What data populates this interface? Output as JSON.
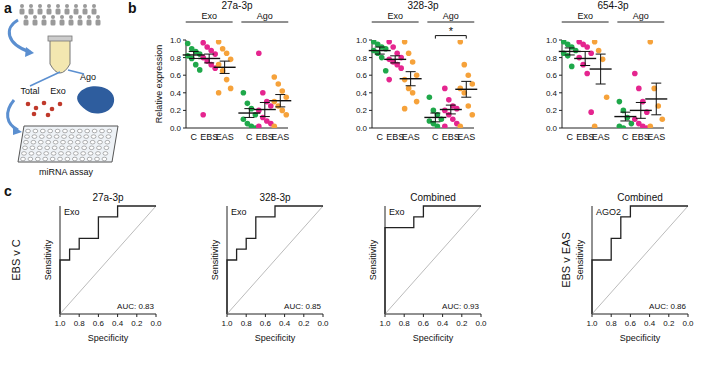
{
  "figure": {
    "panel_labels": [
      "a",
      "b",
      "c"
    ],
    "schematic_labels": [
      "Total",
      "Exo",
      "Ago",
      "miRNA assay"
    ],
    "row_labels": [
      "EBS v C",
      "EBS v EAS"
    ]
  },
  "chart_data": [
    {
      "type": "dot_plot",
      "title": "27a-3p",
      "y_label": "Relative expression",
      "categories": [
        "C",
        "EBS",
        "EAS",
        "C",
        "EBS",
        "EAS"
      ],
      "groups": [
        "Exo",
        "Ago"
      ],
      "colors": [
        "#1fa84a",
        "#e5258f",
        "#f6a23a",
        "#1fa84a",
        "#e5258f",
        "#f6a23a"
      ],
      "points": [
        [
          0.96,
          0.9,
          0.87,
          0.84,
          0.82,
          0.79,
          0.72,
          0.66
        ],
        [
          0.97,
          0.92,
          0.88,
          0.84,
          0.8,
          0.76,
          0.72,
          0.68,
          0.15
        ],
        [
          0.98,
          0.9,
          0.85,
          0.78,
          0.72,
          0.65,
          0.55,
          0.45,
          0.4
        ],
        [
          0.4,
          0.28,
          0.22,
          0.15,
          0.1,
          0.05,
          0.02,
          0.0
        ],
        [
          0.85,
          0.4,
          0.3,
          0.25,
          0.2,
          0.12,
          0.08,
          0.05,
          0.02
        ],
        [
          0.58,
          0.5,
          0.42,
          0.35,
          0.3,
          0.25,
          0.2,
          0.15,
          0.02
        ]
      ],
      "means": [
        0.83,
        0.79,
        0.69,
        0.17,
        0.21,
        0.31
      ],
      "errors": [
        0.04,
        0.05,
        0.07,
        0.05,
        0.08,
        0.07
      ],
      "ylim": [
        0,
        1
      ],
      "yticks": [
        {
          "value": 0,
          "label": "0.0"
        },
        0.2,
        0.4,
        0.6,
        0.8,
        {
          "value": 1,
          "label": "1.0"
        }
      ]
    },
    {
      "type": "dot_plot",
      "title": "328-3p",
      "categories": [
        "C",
        "EBS",
        "EAS",
        "C",
        "EBS",
        "EAS"
      ],
      "groups": [
        "Exo",
        "Ago"
      ],
      "colors": [
        "#1fa84a",
        "#e5258f",
        "#f6a23a",
        "#1fa84a",
        "#e5258f",
        "#f6a23a"
      ],
      "points": [
        [
          0.98,
          0.95,
          0.92,
          0.9,
          0.88,
          0.85,
          0.8,
          0.65
        ],
        [
          0.98,
          0.92,
          0.85,
          0.8,
          0.78,
          0.75,
          0.72,
          0.68,
          0.55
        ],
        [
          0.98,
          0.85,
          0.75,
          0.6,
          0.55,
          0.45,
          0.4,
          0.3,
          0.22
        ],
        [
          0.35,
          0.2,
          0.15,
          0.1,
          0.08,
          0.05,
          0.02
        ],
        [
          0.45,
          0.32,
          0.25,
          0.22,
          0.2,
          0.15,
          0.1,
          0.05,
          0.02
        ],
        [
          0.98,
          0.72,
          0.6,
          0.5,
          0.45,
          0.4,
          0.25,
          0.15,
          0.02
        ]
      ],
      "means": [
        0.88,
        0.78,
        0.56,
        0.12,
        0.21,
        0.44
      ],
      "errors": [
        0.04,
        0.04,
        0.08,
        0.05,
        0.05,
        0.09
      ],
      "ylim": [
        0,
        1
      ],
      "yticks": [
        {
          "value": 0,
          "label": "0.0"
        },
        0.2,
        0.4,
        0.6,
        0.8,
        {
          "value": 1,
          "label": "1.0"
        }
      ],
      "annotations": [
        {
          "text": "*",
          "from": 3,
          "to": 5,
          "y": 1.05
        }
      ]
    },
    {
      "type": "dot_plot",
      "title": "654-3p",
      "categories": [
        "C",
        "EBS",
        "EAS",
        "C",
        "EBS",
        "EAS"
      ],
      "groups": [
        "Exo",
        "Ago"
      ],
      "colors": [
        "#1fa84a",
        "#e5258f",
        "#f6a23a",
        "#1fa84a",
        "#e5258f",
        "#f6a23a"
      ],
      "points": [
        [
          0.98,
          0.95,
          0.92,
          0.88,
          0.85,
          0.82,
          0.7
        ],
        [
          0.98,
          0.95,
          0.92,
          0.85,
          0.8,
          0.72,
          0.62,
          0.18
        ],
        [
          0.98,
          0.88,
          0.78,
          0.35,
          0.02
        ],
        [
          0.3,
          0.2,
          0.12,
          0.05,
          0.02,
          0.0
        ],
        [
          0.62,
          0.45,
          0.3,
          0.18,
          0.1,
          0.05,
          0.02,
          0.0
        ],
        [
          0.98,
          0.45,
          0.25,
          0.1,
          0.02
        ]
      ],
      "means": [
        0.87,
        0.79,
        0.67,
        0.13,
        0.2,
        0.33
      ],
      "errors": [
        0.04,
        0.08,
        0.17,
        0.05,
        0.09,
        0.18
      ],
      "ylim": [
        0,
        1
      ],
      "yticks": [
        {
          "value": 0,
          "label": "0.0"
        },
        0.2,
        0.4,
        0.6,
        0.8,
        {
          "value": 1,
          "label": "1.0"
        }
      ]
    },
    {
      "type": "line",
      "title": "27a-3p",
      "label": "Exo",
      "annotation": "AUC: 0.83",
      "x_label": "Specificity",
      "y_label": "Sensitivity",
      "color": "#222222",
      "tick_labels": "x",
      "x": [
        1,
        1,
        0.9,
        0.9,
        0.8,
        0.8,
        0.6,
        0.6,
        0.4,
        0.4,
        0
      ],
      "values": [
        0,
        0.5,
        0.5,
        0.6,
        0.6,
        0.7,
        0.7,
        0.9,
        0.9,
        1,
        1
      ],
      "xlim": [
        1,
        0
      ],
      "ylim": [
        0,
        1
      ],
      "xticks": [
        {
          "value": 1,
          "label": "1.0"
        },
        0.8,
        0.6,
        0.4,
        0.2,
        {
          "value": 0,
          "label": "0.0"
        }
      ]
    },
    {
      "type": "line",
      "title": "328-3p",
      "label": "Exo",
      "annotation": "AUC: 0.85",
      "x_label": "Specificity",
      "y_label": "Sensitivity",
      "color": "#222222",
      "tick_labels": "x",
      "x": [
        1,
        1,
        0.9,
        0.9,
        0.8,
        0.8,
        0.7,
        0.7,
        0.5,
        0.5,
        0
      ],
      "values": [
        0,
        0.5,
        0.5,
        0.6,
        0.6,
        0.7,
        0.7,
        0.9,
        0.9,
        1,
        1
      ],
      "xlim": [
        1,
        0
      ],
      "ylim": [
        0,
        1
      ],
      "xticks": [
        {
          "value": 1,
          "label": "1.0"
        },
        0.8,
        0.6,
        0.4,
        0.2,
        {
          "value": 0,
          "label": "0.0"
        }
      ]
    },
    {
      "type": "line",
      "title": "Combined",
      "label": "Exo",
      "annotation": "AUC: 0.93",
      "x_label": "Specificity",
      "y_label": "Sensitivity",
      "color": "#222222",
      "tick_labels": "x",
      "x": [
        1,
        1,
        0.7,
        0.7,
        0.6,
        0.6,
        0
      ],
      "values": [
        0,
        0.8,
        0.8,
        0.9,
        0.9,
        1,
        1
      ],
      "xlim": [
        1,
        0
      ],
      "ylim": [
        0,
        1
      ],
      "xticks": [
        {
          "value": 1,
          "label": "1.0"
        },
        0.8,
        0.6,
        0.4,
        0.2,
        {
          "value": 0,
          "label": "0.0"
        }
      ]
    },
    {
      "type": "line",
      "title": "Combined",
      "label": "AGO2",
      "annotation": "AUC: 0.86",
      "x_label": "Specificity",
      "y_label": "Sensitivity",
      "color": "#222222",
      "tick_labels": "x",
      "x": [
        1,
        1,
        0.8,
        0.8,
        0.7,
        0.7,
        0.6,
        0.6,
        0
      ],
      "values": [
        0,
        0.5,
        0.5,
        0.7,
        0.7,
        0.9,
        0.9,
        1,
        1
      ],
      "xlim": [
        1,
        0
      ],
      "ylim": [
        0,
        1
      ],
      "xticks": [
        {
          "value": 1,
          "label": "1.0"
        },
        0.8,
        0.6,
        0.4,
        0.2,
        {
          "value": 0,
          "label": "0.0"
        }
      ]
    }
  ]
}
